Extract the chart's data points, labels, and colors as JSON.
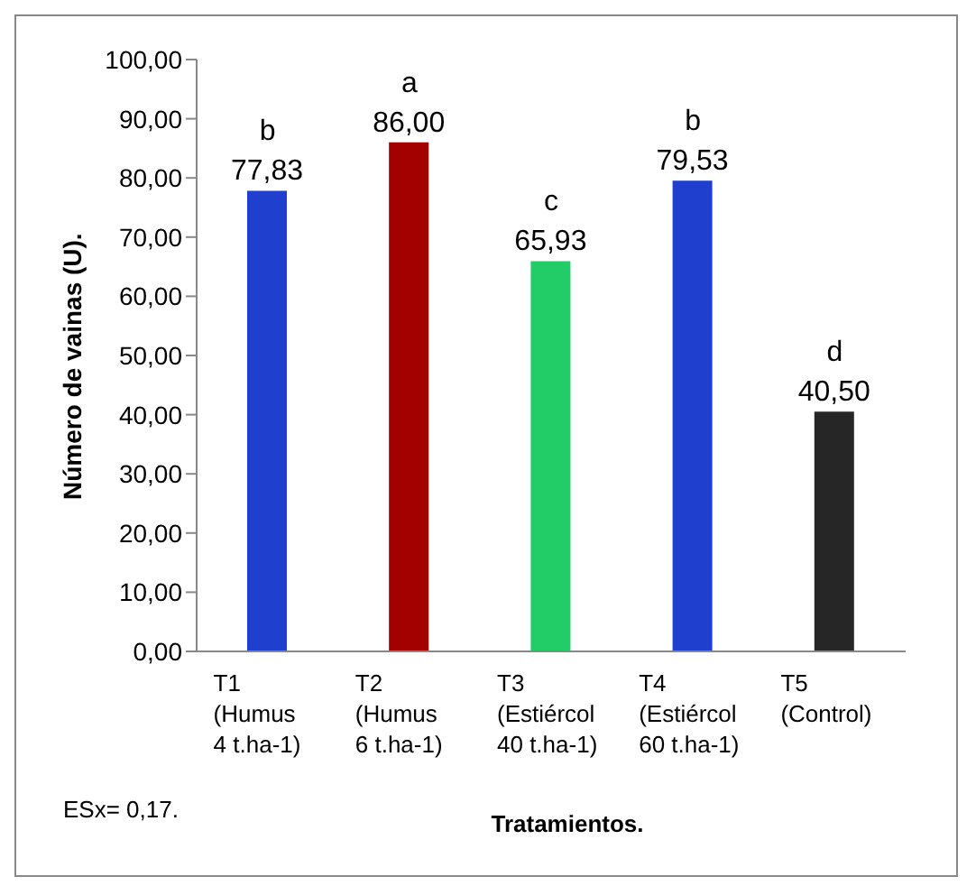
{
  "chart_data": {
    "type": "bar",
    "xlabel": "Tratamientos.",
    "ylabel": "Número de vainas (U).",
    "categories": [
      "T1\n(Humus\n4 t.ha-1)",
      "T2\n(Humus\n6 t.ha-1)",
      "T3\n(Estiércol\n40 t.ha-1)",
      "T4\n(Estiércol\n60 t.ha-1)",
      "T5\n(Control)"
    ],
    "values": [
      77.83,
      86.0,
      65.93,
      79.53,
      40.5
    ],
    "colors": [
      "#1f3fcf",
      "#a30000",
      "#22cc66",
      "#1f3fcf",
      "#262626"
    ],
    "value_labels": [
      "77,83",
      "86,00",
      "65,93",
      "79,53",
      "40,50"
    ],
    "ylim": [
      0,
      100
    ],
    "yticks": [
      {
        "value": 0,
        "label": "0,00"
      },
      {
        "value": 10,
        "label": "10,00"
      },
      {
        "value": 20,
        "label": "20,00"
      },
      {
        "value": 30,
        "label": "30,00"
      },
      {
        "value": 40,
        "label": "40,00"
      },
      {
        "value": 50,
        "label": "50,00"
      },
      {
        "value": 60,
        "label": "60,00"
      },
      {
        "value": 70,
        "label": "70,00"
      },
      {
        "value": 80,
        "label": "80,00"
      },
      {
        "value": 90,
        "label": "90,00"
      },
      {
        "value": 100,
        "label": "100,00"
      }
    ],
    "grid": false,
    "annotations": [
      {
        "text": "b",
        "x": "T1\n(Humus\n4 t.ha-1)",
        "y": 77.83
      },
      {
        "text": "a",
        "x": "T2\n(Humus\n6 t.ha-1)",
        "y": 86.0
      },
      {
        "text": "c",
        "x": "T3\n(Estiércol\n40 t.ha-1)",
        "y": 65.93
      },
      {
        "text": "b",
        "x": "T4\n(Estiércol\n60 t.ha-1)",
        "y": 79.53
      },
      {
        "text": "d",
        "x": "T5\n(Control)",
        "y": 40.5
      },
      "ESx= 0,17."
    ]
  }
}
